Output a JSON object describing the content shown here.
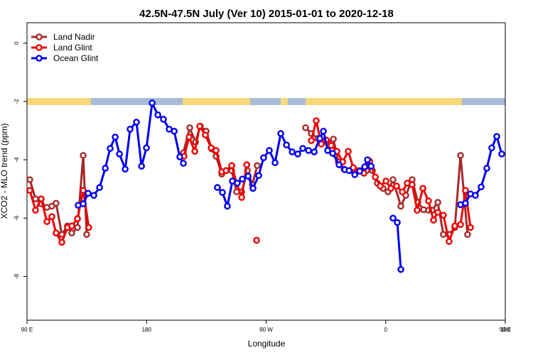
{
  "chart_data": {
    "type": "line",
    "title": "42.5N-47.5N July (Ver 10)   2015-01-01 to 2020-12-18",
    "x_label": "Longitude",
    "y_label": "XCO2 - MLO trend (ppm)",
    "xlim": [
      90,
      450
    ],
    "ylim": [
      -9.5,
      0.7
    ],
    "xticks": [
      {
        "value": 90,
        "label": "90 E"
      },
      {
        "value": 180,
        "label": "180"
      },
      {
        "value": 270,
        "label": "90 W"
      },
      {
        "value": 360,
        "label": "0"
      },
      {
        "value": 450,
        "label": "90 E"
      },
      {
        "value": 540,
        "label": "180"
      }
    ],
    "yticks": [
      0,
      -2,
      -4,
      -6,
      -8
    ],
    "legend": "top-left",
    "series": [
      {
        "name": "Land Nadir",
        "color": "#a52a2a",
        "x": [
          92.1,
          96.4,
          100.7,
          105,
          108.7,
          111.9,
          116.2,
          120.5,
          123.7,
          128,
          132.3,
          134.9,
          170,
          207.7,
          212.5,
          216.8,
          220.5,
          224.8,
          229.1,
          232.3,
          236.6,
          239.8,
          244.1,
          247.8,
          251.6,
          255.9,
          259.6,
          263.3,
          280,
          299.7,
          304,
          308.8,
          313.1,
          316.3,
          320.6,
          324.3,
          328.6,
          332.9,
          337.2,
          341.4,
          345.7,
          350,
          353.7,
          358,
          361.7,
          365.5,
          371.4,
          375.1,
          379.9,
          384.2,
          388.5,
          392.2,
          394.9,
          399.2,
          403.4,
          407.7,
          412,
          416.3,
          421.6
        ],
        "values": [
          -4.68,
          -5.34,
          -5.51,
          -5.63,
          -5.59,
          -5.49,
          -6.56,
          -6.27,
          -6.51,
          -6.32,
          -3.85,
          -6.56,
          null,
          -3.76,
          -2.9,
          -3.39,
          -2.85,
          -3.02,
          -3.63,
          -3.88,
          -4.49,
          -4.37,
          -4.37,
          -5.1,
          -5.1,
          -4.37,
          -4.85,
          -4.2,
          null,
          -2.9,
          -3.1,
          -3.27,
          -3.39,
          -3.39,
          -3.29,
          -4.07,
          -4.32,
          -4.37,
          -4.37,
          -4.37,
          -4.37,
          -4.37,
          -4.8,
          -4.98,
          -5.1,
          -4.68,
          -5.59,
          -5.22,
          -4.68,
          -5.46,
          -5.71,
          -5.73,
          -5.73,
          -5.46,
          -6.56,
          -6.56,
          -6.32,
          -3.85,
          -6.56
        ]
      },
      {
        "name": "Land Glint",
        "color": "#ee0000",
        "x": [
          92.1,
          96.4,
          100.7,
          105,
          108.7,
          111.9,
          116.2,
          120.5,
          123.7,
          128,
          132.3,
          136.5,
          170,
          208.2,
          212,
          216.3,
          220,
          224.3,
          228.6,
          232.3,
          236.6,
          239.8,
          244.1,
          247.8,
          251.6,
          255.4,
          258,
          262.8,
          280,
          304,
          307.7,
          311.5,
          315.2,
          319,
          323.3,
          327.6,
          331.8,
          335.6,
          339.3,
          343.6,
          347.9,
          352.2,
          355.9,
          360.2,
          363.9,
          368.2,
          372.5,
          376.2,
          379.9,
          383.7,
          388,
          392.2,
          396,
          399.2,
          403.4,
          407.7,
          412,
          416.3,
          420,
          423.8
        ],
        "values": [
          -5.05,
          -5.73,
          -5.34,
          -6.12,
          -5.95,
          -6.51,
          -6.83,
          -6.32,
          -6.27,
          -6.02,
          -5.05,
          -6.32,
          null,
          -3.88,
          -3.22,
          -3.71,
          -2.85,
          -3.15,
          -3.59,
          -3.68,
          -4.41,
          -4.37,
          -4.2,
          -4.8,
          -5.29,
          -4.17,
          null,
          -6.76,
          null,
          -3.34,
          -2.66,
          -3.46,
          -3.32,
          -3.51,
          -3.71,
          -4.07,
          -3.71,
          -4.27,
          -4.37,
          -4.46,
          -4.05,
          -4.59,
          -4.9,
          -4.73,
          -4.98,
          -4.9,
          -5.1,
          -4.8,
          -4.85,
          -5.73,
          -4.98,
          -5.41,
          -6.07,
          -5.8,
          -5.9,
          -6.8,
          -6.27,
          -6.22,
          -5.05,
          -6.32
        ]
      },
      {
        "name": "Ocean Glint",
        "color": "#0000ee",
        "x": [
          128.5,
          132.3,
          136,
          140.3,
          144.6,
          148.9,
          152.6,
          156.4,
          159.6,
          163.9,
          167.6,
          172.4,
          176.2,
          179.9,
          184.2,
          188.5,
          192.7,
          197,
          200.8,
          205,
          207.7,
          230,
          233.3,
          237.1,
          240.8,
          244.6,
          248.3,
          252.1,
          256.4,
          260.1,
          264.4,
          268.1,
          272.4,
          276.7,
          281,
          285.3,
          289.6,
          293.8,
          297.6,
          301.9,
          306.2,
          310.4,
          313.1,
          316.3,
          320.1,
          324.9,
          329.2,
          332.4,
          336.7,
          340.4,
          344.2,
          346.3,
          349,
          360,
          365.5,
          368.7,
          371.4,
          390,
          416.3,
          420,
          423.8,
          427.5,
          431.8,
          436.1,
          439.8,
          443.6,
          447.3
        ],
        "values": [
          -5.56,
          -5.51,
          -5.15,
          -5.22,
          -4.95,
          -4.29,
          -3.61,
          -3.22,
          -3.8,
          -4.32,
          -2.95,
          -2.71,
          -4.22,
          -3.59,
          -2.05,
          -2.46,
          -2.61,
          -2.95,
          -3.02,
          -3.9,
          -4.12,
          null,
          -4.95,
          -5.12,
          -5.59,
          -4.73,
          -4.8,
          -4.66,
          -4.56,
          -4.98,
          -4.54,
          -3.93,
          -3.68,
          -4.1,
          -3.1,
          -3.49,
          -3.73,
          -3.8,
          -3.61,
          -3.68,
          -3.73,
          -3.27,
          -3.02,
          -3.68,
          -3.78,
          -4.17,
          -4.34,
          -4.37,
          -4.51,
          -4.39,
          -4.24,
          -4.0,
          -4.22,
          null,
          -6.0,
          -6.15,
          -7.76,
          null,
          -5.54,
          -5.49,
          -5.17,
          -5.22,
          -4.93,
          -4.29,
          -3.59,
          -3.2,
          -3.8
        ]
      }
    ]
  }
}
